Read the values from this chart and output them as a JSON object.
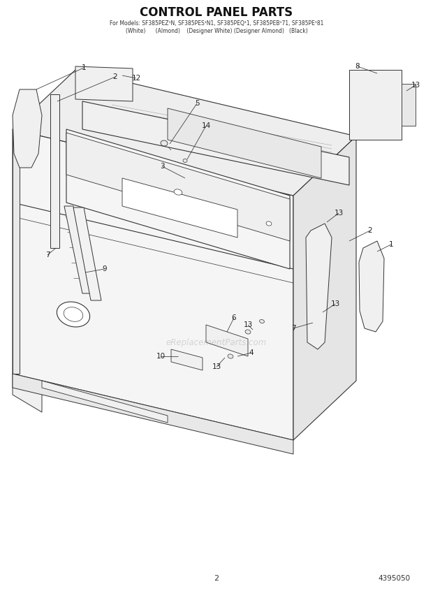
{
  "title": "CONTROL PANEL PARTS",
  "subtitle_line1": "For Models: SF385PEZ¹N, SF385PES¹N1, SF385PEQ¹1, SF385PEB¹71, SF385PE¹81",
  "subtitle_line2": "(White)      (Almond)    (Designer White) (Designer Almond)   (Black)",
  "page_number": "2",
  "part_number": "4395050",
  "watermark": "eReplacementParts.com",
  "bg": "#ffffff",
  "lc": "#333333",
  "fig_w": 6.2,
  "fig_h": 8.56,
  "dpi": 100
}
